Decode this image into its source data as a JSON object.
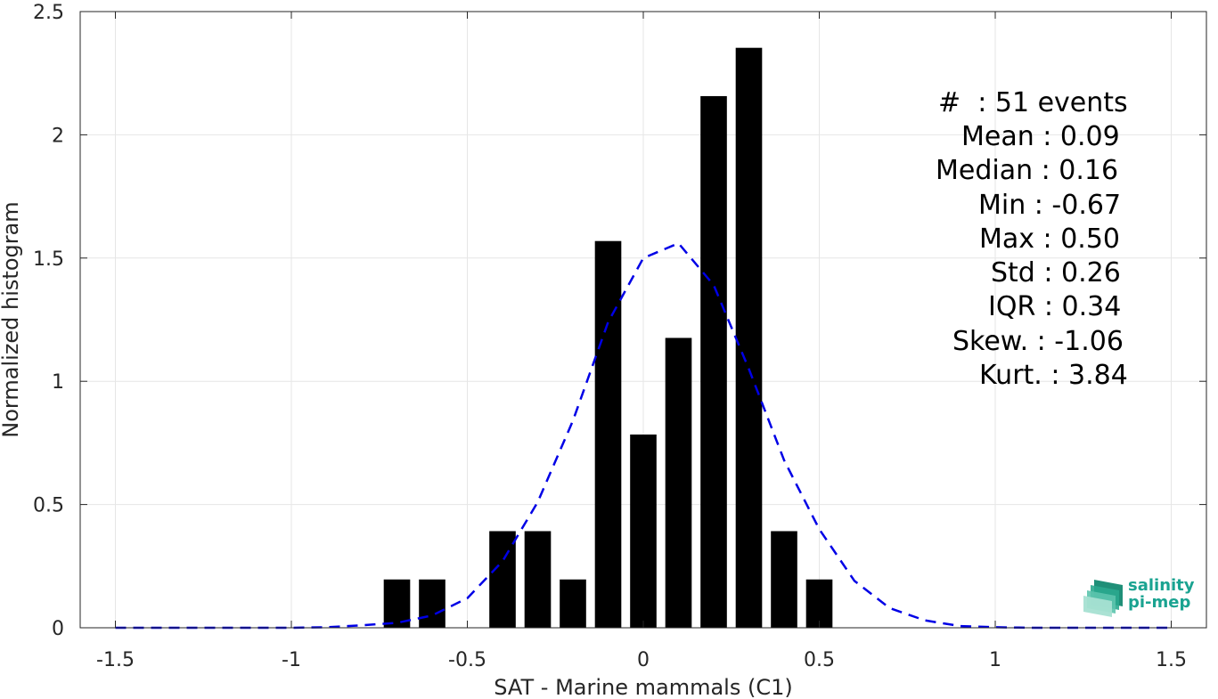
{
  "chart_data": {
    "type": "bar",
    "xlabel": "SAT - Marine mammals (C1)",
    "ylabel": "Normalized histogram",
    "xlim": [
      -1.6,
      1.6
    ],
    "ylim": [
      0,
      2.5
    ],
    "xticks": [
      "-1.5",
      "-1",
      "-0.5",
      "0",
      "0.5",
      "1",
      "1.5"
    ],
    "xtick_values": [
      -1.5,
      -1,
      -0.5,
      0,
      0.5,
      1,
      1.5
    ],
    "yticks": [
      "0",
      "0.5",
      "1",
      "1.5",
      "2",
      "2.5"
    ],
    "ytick_values": [
      0,
      0.5,
      1,
      1.5,
      2,
      2.5
    ],
    "grid": true,
    "bar_width": 0.075,
    "bars": {
      "x": [
        -0.7,
        -0.6,
        -0.4,
        -0.3,
        -0.2,
        -0.1,
        0,
        0.1,
        0.2,
        0.3,
        0.4,
        0.5
      ],
      "values": [
        0.196,
        0.196,
        0.392,
        0.392,
        0.196,
        1.569,
        0.784,
        1.176,
        2.157,
        2.353,
        0.392,
        0.196
      ],
      "color": "#000000"
    },
    "fit_curve": {
      "style": "dashed",
      "color": "#0000e6",
      "x": [
        -1.5,
        -1.4,
        -1.3,
        -1.2,
        -1.1,
        -1.0,
        -0.9,
        -0.8,
        -0.7,
        -0.6,
        -0.5,
        -0.4,
        -0.3,
        -0.2,
        -0.1,
        0.0,
        0.1,
        0.2,
        0.3,
        0.4,
        0.5,
        0.6,
        0.7,
        0.8,
        0.9,
        1.0,
        1.1,
        1.2,
        1.3,
        1.4,
        1.5
      ],
      "y": [
        0,
        0,
        0,
        0,
        0,
        0,
        0.002,
        0.01,
        0.02,
        0.05,
        0.12,
        0.27,
        0.51,
        0.84,
        1.24,
        1.5,
        1.56,
        1.39,
        1.05,
        0.68,
        0.4,
        0.19,
        0.08,
        0.03,
        0.007,
        0.002,
        0,
        0,
        0,
        0,
        0
      ]
    }
  },
  "stats": [
    "#  : 51 events",
    "Mean : 0.09",
    "Median : 0.16",
    "Min : -0.67",
    "Max : 0.50",
    "Std : 0.26",
    "IQR : 0.34",
    "Skew. : -1.06",
    "Kurt. : 3.84"
  ],
  "logo": {
    "line1": "salinity",
    "line2": "pi-mep"
  }
}
